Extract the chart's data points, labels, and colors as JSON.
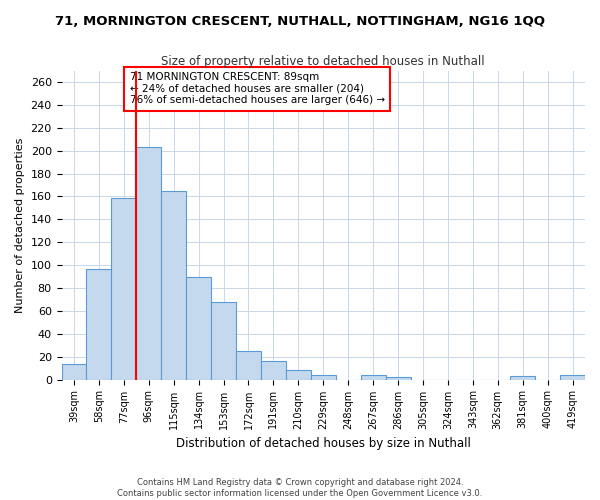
{
  "title": "71, MORNINGTON CRESCENT, NUTHALL, NOTTINGHAM, NG16 1QQ",
  "subtitle": "Size of property relative to detached houses in Nuthall",
  "xlabel": "Distribution of detached houses by size in Nuthall",
  "ylabel": "Number of detached properties",
  "categories": [
    "39sqm",
    "58sqm",
    "77sqm",
    "96sqm",
    "115sqm",
    "134sqm",
    "153sqm",
    "172sqm",
    "191sqm",
    "210sqm",
    "229sqm",
    "248sqm",
    "267sqm",
    "286sqm",
    "305sqm",
    "324sqm",
    "343sqm",
    "362sqm",
    "381sqm",
    "400sqm",
    "419sqm"
  ],
  "values": [
    14,
    97,
    159,
    203,
    165,
    90,
    68,
    25,
    16,
    8,
    4,
    0,
    4,
    2,
    0,
    0,
    0,
    0,
    3,
    0,
    4
  ],
  "bar_color": "#C5D9EE",
  "bar_edge_color": "#5B9BD5",
  "ylim": [
    0,
    270
  ],
  "yticks": [
    0,
    20,
    40,
    60,
    80,
    100,
    120,
    140,
    160,
    180,
    200,
    220,
    240,
    260
  ],
  "property_label": "71 MORNINGTON CRESCENT: 89sqm",
  "annotation_line1": "← 24% of detached houses are smaller (204)",
  "annotation_line2": "76% of semi-detached houses are larger (646) →",
  "vline_x_index": 2.5,
  "footer_line1": "Contains HM Land Registry data © Crown copyright and database right 2024.",
  "footer_line2": "Contains public sector information licensed under the Open Government Licence v3.0.",
  "background_color": "#FFFFFF",
  "grid_color": "#C8D8EA"
}
